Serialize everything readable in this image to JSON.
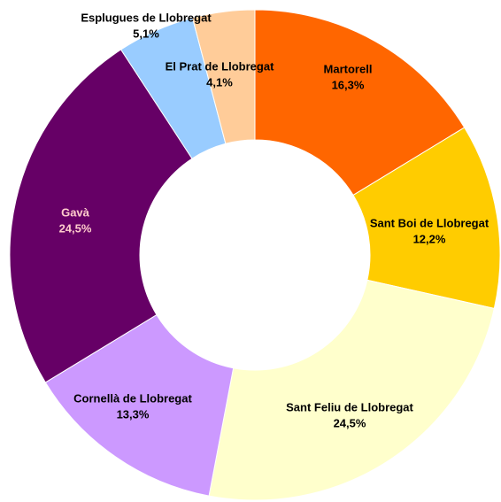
{
  "chart_data": {
    "type": "pie",
    "categories": [
      "Martorell",
      "Sant Boi de Llobregat",
      "Sant Feliu de Llobregat",
      "Cornellà de Llobregat",
      "Gavà",
      "Esplugues de Llobregat",
      "El Prat de Llobregat"
    ],
    "values": [
      16.3,
      12.2,
      24.5,
      13.3,
      24.5,
      5.1,
      4.1
    ],
    "value_labels": [
      "16,3%",
      "12,2%",
      "24,5%",
      "13,3%",
      "24,5%",
      "5,1%",
      "4,1%"
    ],
    "colors": [
      "#ff6600",
      "#ffcc00",
      "#ffffcc",
      "#cc99ff",
      "#660066",
      "#99ccff",
      "#ffcc99"
    ],
    "label_colors": [
      "#000000",
      "#000000",
      "#000000",
      "#000000",
      "#ffcccc",
      "#000000",
      "#000000"
    ]
  }
}
